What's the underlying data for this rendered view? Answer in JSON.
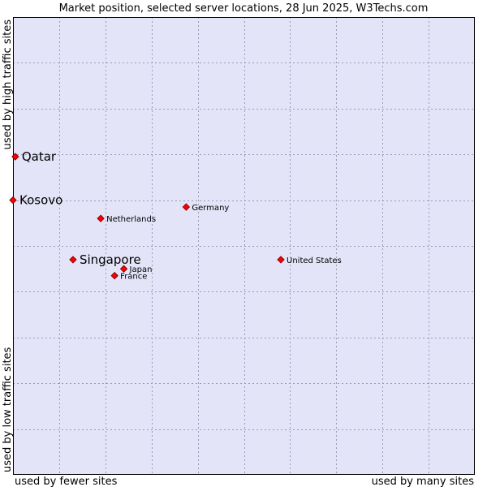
{
  "chart_data": {
    "type": "scatter",
    "title": "Market position, selected server locations, 28 Jun 2025, W3Techs.com",
    "xlabel_left": "used by fewer sites",
    "xlabel_right": "used by many sites",
    "ylabel_top": "used by high traffic sites",
    "ylabel_bottom": "used by low traffic sites",
    "xlim": [
      0,
      100
    ],
    "ylim": [
      0,
      100
    ],
    "grid": true,
    "colors": {
      "plot_background": "#e4e4f8",
      "marker_fill": "#ff0000",
      "marker_stroke": "#8b0000"
    },
    "points": [
      {
        "label": "Qatar",
        "x": 0.5,
        "y": 69.5,
        "emphasis": true
      },
      {
        "label": "Kosovo",
        "x": 0.0,
        "y": 60.0,
        "emphasis": true
      },
      {
        "label": "Germany",
        "x": 37.5,
        "y": 58.5,
        "emphasis": false
      },
      {
        "label": "Netherlands",
        "x": 19.0,
        "y": 56.0,
        "emphasis": false
      },
      {
        "label": "United States",
        "x": 58.0,
        "y": 47.0,
        "emphasis": false
      },
      {
        "label": "Singapore",
        "x": 13.0,
        "y": 47.0,
        "emphasis": true
      },
      {
        "label": "Japan",
        "x": 24.0,
        "y": 45.0,
        "emphasis": false
      },
      {
        "label": "France",
        "x": 22.0,
        "y": 43.5,
        "emphasis": false
      }
    ]
  }
}
